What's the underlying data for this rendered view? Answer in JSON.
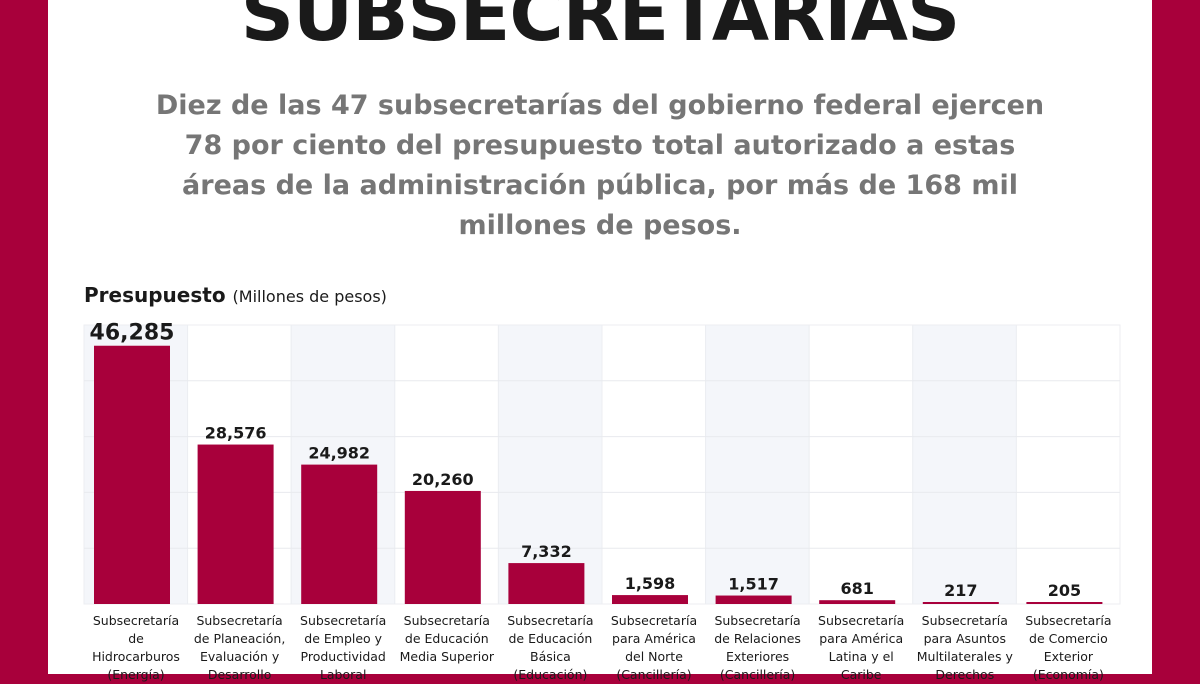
{
  "title": "SUBSECRETARÍAS",
  "subtitle": "Diez de las 47 subsecretarías del gobierno federal ejercen 78 por ciento del presupuesto total autorizado a estas áreas de la administración pública, por más de 168 mil millones de pesos.",
  "colors": {
    "border": "#a8003b",
    "bar": "#a8003b",
    "alt_column": "#f4f6fa"
  },
  "chart_data": {
    "type": "bar",
    "title": "Presupuesto",
    "unit": "(Millones de pesos)",
    "ylim": [
      0,
      50000
    ],
    "grid": true,
    "categories": [
      "Subsecretaría de Hidrocarburos (Energía)",
      "Subsecretaría de Planeación, Evaluación y Desarrollo",
      "Subsecretaría de Empleo y Productividad Laboral",
      "Subsecretaría de Educación Media Superior",
      "Subsecretaría de Educación Básica (Educación)",
      "Subsecretaría para América del Norte (Cancillería)",
      "Subsecretaría de Relaciones Exteriores (Cancillería)",
      "Subsecretaría para América Latina y el Caribe",
      "Subsecretaría para Asuntos Multilaterales y Derechos",
      "Subsecretaría de Comercio Exterior (Economía)"
    ],
    "values": [
      46285,
      28576,
      24982,
      20260,
      7332,
      1598,
      1517,
      681,
      217,
      205
    ],
    "value_labels": [
      "46,285",
      "28,576",
      "24,982",
      "20,260",
      "7,332",
      "1,598",
      "1,517",
      "681",
      "217",
      "205"
    ]
  }
}
